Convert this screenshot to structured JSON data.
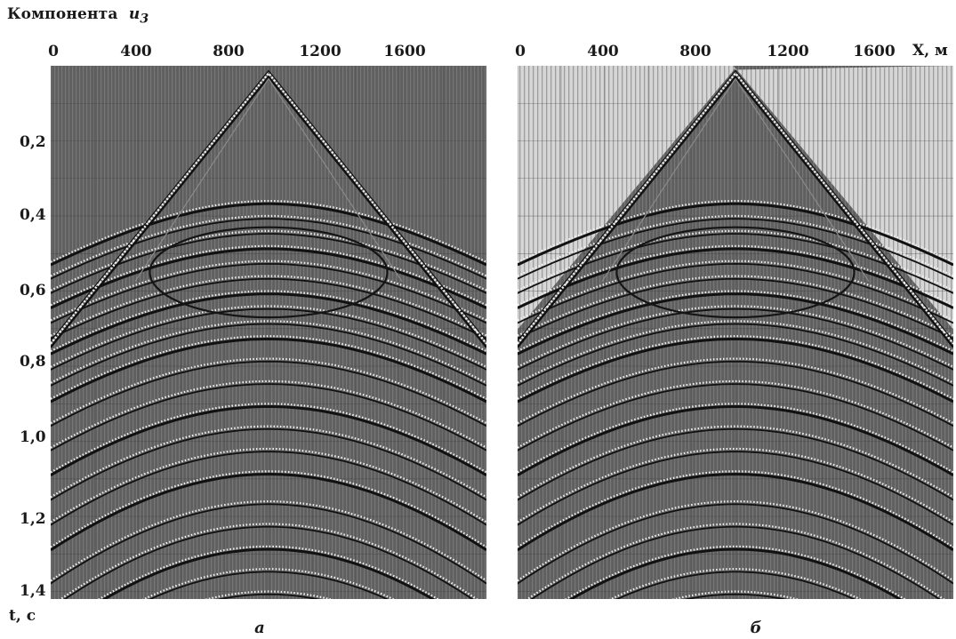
{
  "chart_data": [
    {
      "type": "heatmap",
      "title": "Компонента",
      "title_symbol": "u",
      "title_subscript": "3",
      "panel_label": "а",
      "xlabel": "X, м",
      "ylabel": "t, с",
      "x_ticks": [
        "0",
        "400",
        "800",
        "1200",
        "1600"
      ],
      "x_tick_values": [
        0,
        400,
        800,
        1200,
        1600
      ],
      "y_ticks": [
        "0,2",
        "0,4",
        "0,6",
        "0,8",
        "1,0",
        "1,2",
        "1,4"
      ],
      "y_tick_values": [
        0.2,
        0.4,
        0.6,
        0.8,
        1.0,
        1.2,
        1.4
      ],
      "xlim": [
        0,
        2000
      ],
      "ylim": [
        0,
        1.42
      ],
      "apex_x": 1000,
      "apex_t": 0.02,
      "direct_wave_edge_t": 0.74,
      "ellipse": {
        "center_x": 1000,
        "center_t": 0.55,
        "half_width_x": 545,
        "half_height_t": 0.12
      },
      "reflection_times_at_apex": [
        0.36,
        0.4,
        0.44,
        0.48,
        0.52,
        0.56,
        0.6,
        0.64,
        0.68,
        0.72,
        0.78,
        0.84,
        0.9,
        0.96,
        1.02,
        1.08,
        1.16,
        1.22,
        1.28,
        1.34,
        1.4
      ],
      "grid": true,
      "mute_above_direct_wave": false
    },
    {
      "type": "heatmap",
      "panel_label": "б",
      "xlabel": "X, м",
      "ylabel": "t, с",
      "x_ticks": [
        "0",
        "400",
        "800",
        "1200",
        "1600"
      ],
      "x_tick_values": [
        0,
        400,
        800,
        1200,
        1600
      ],
      "y_tick_values": [
        0.2,
        0.4,
        0.6,
        0.8,
        1.0,
        1.2,
        1.4
      ],
      "xlim": [
        0,
        2000
      ],
      "ylim": [
        0,
        1.42
      ],
      "apex_x": 1000,
      "apex_t": 0.02,
      "direct_wave_edge_t": 0.74,
      "ellipse": {
        "center_x": 1000,
        "center_t": 0.55,
        "half_width_x": 545,
        "half_height_t": 0.12
      },
      "reflection_times_at_apex": [
        0.36,
        0.4,
        0.44,
        0.48,
        0.52,
        0.56,
        0.6,
        0.64,
        0.68,
        0.72,
        0.78,
        0.84,
        0.9,
        0.96,
        1.02,
        1.08,
        1.16,
        1.22,
        1.28,
        1.34,
        1.4
      ],
      "grid": true,
      "mute_above_direct_wave": true
    }
  ],
  "colors": {
    "background_trace": "#5f5f5f",
    "muted_area": "#d6d6d6",
    "event_dark": "#111111",
    "event_light": "#f2f2f2",
    "ellipse": "#151515"
  }
}
